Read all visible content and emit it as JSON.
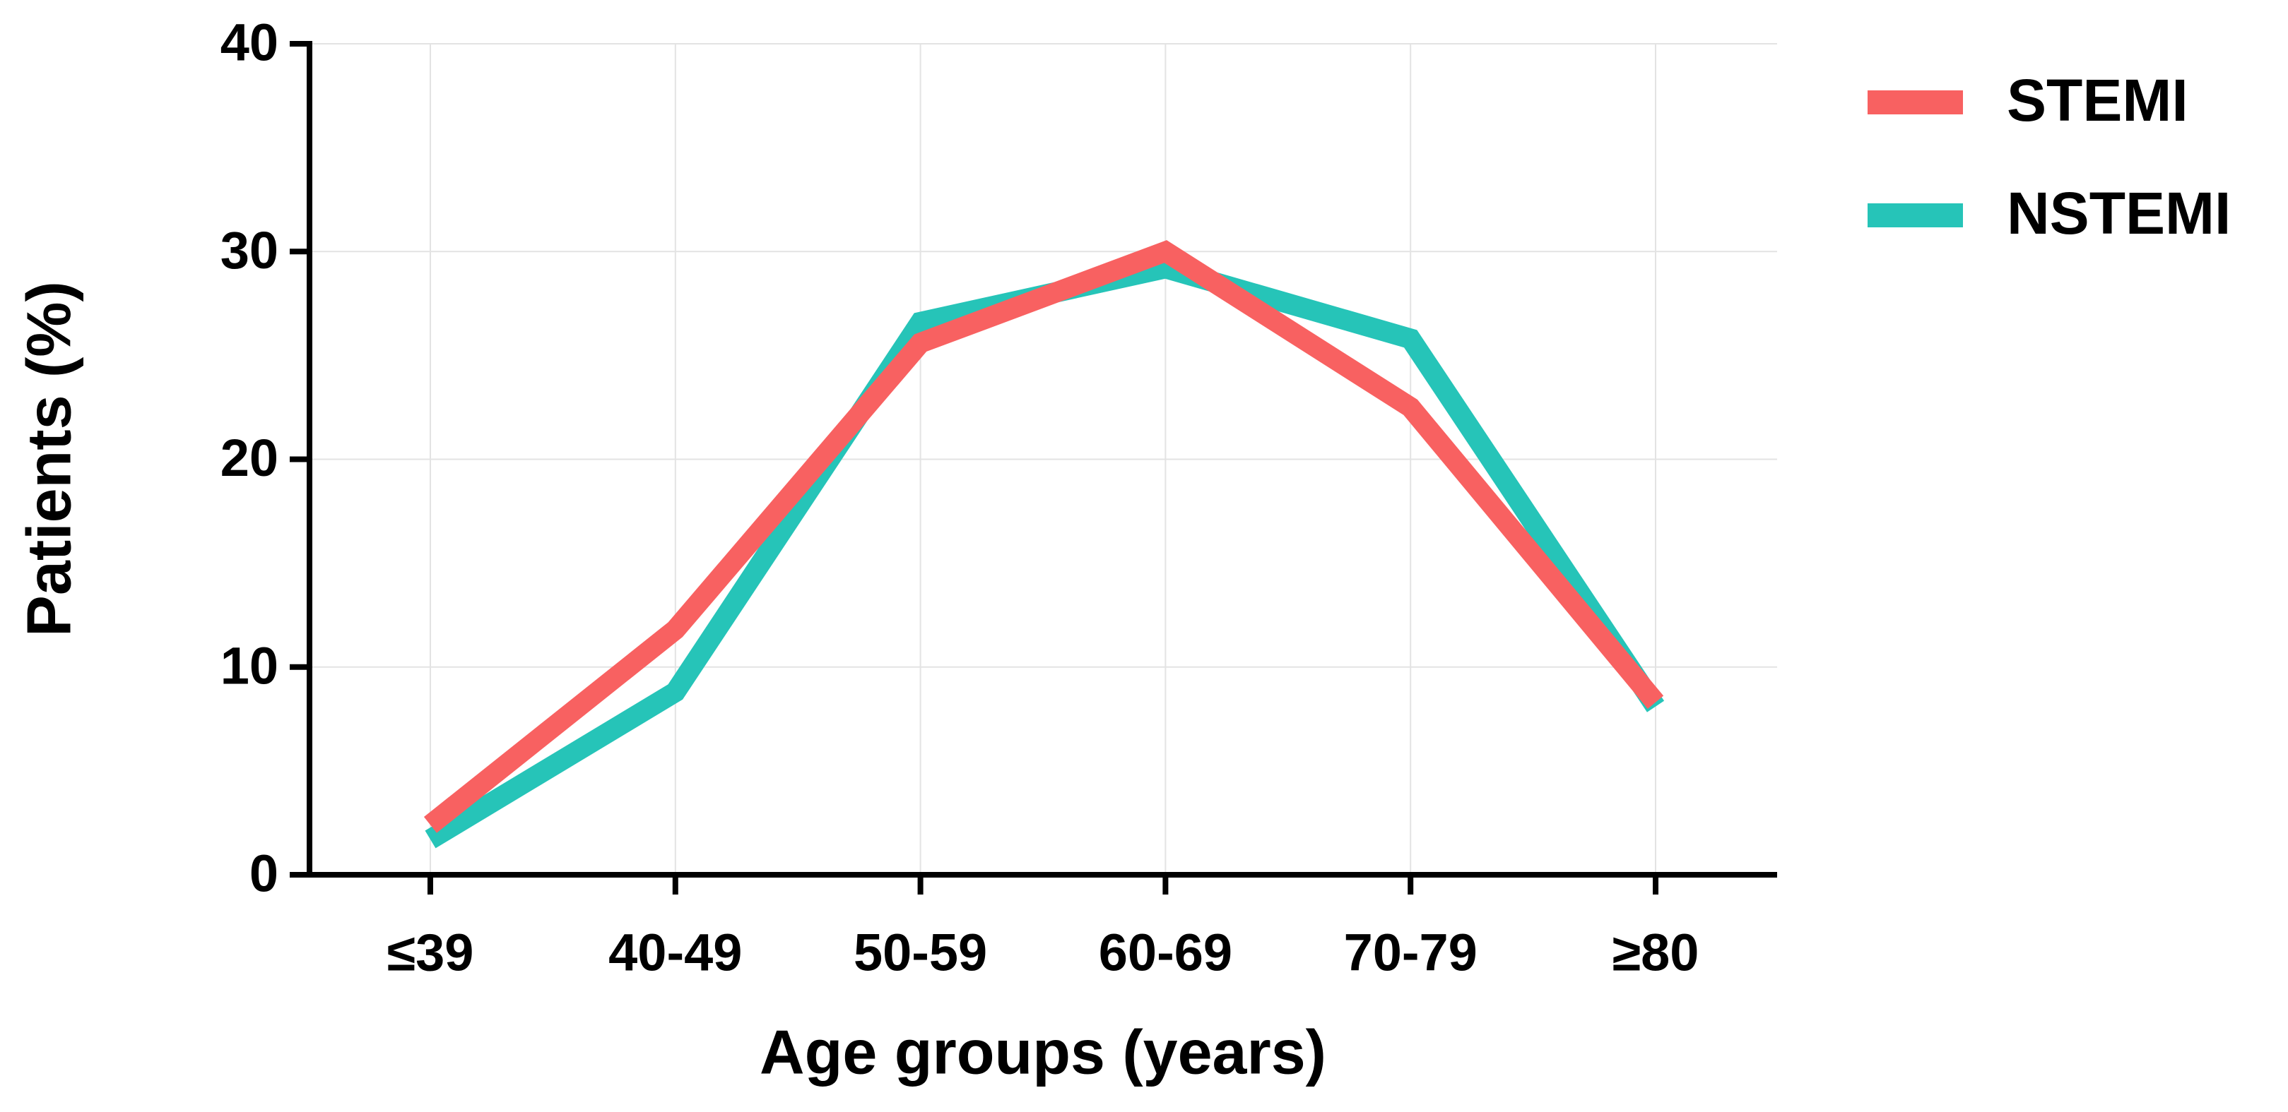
{
  "chart_data": {
    "type": "line",
    "x_label": "Age groups (years)",
    "y_label": "Patients (%)",
    "categories": [
      "≤39",
      "40-49",
      "50-59",
      "60-69",
      "70-79",
      "≥80"
    ],
    "series": [
      {
        "name": "STEMI",
        "color": "#f86161",
        "values": [
          2.4,
          11.8,
          25.6,
          30.0,
          22.5,
          8.3
        ]
      },
      {
        "name": "NSTEMI",
        "color": "#26c4b8",
        "values": [
          1.7,
          8.8,
          26.6,
          29.2,
          25.8,
          8.1
        ]
      }
    ],
    "ylim": [
      0,
      40
    ],
    "yticks": [
      0,
      10,
      20,
      30,
      40
    ],
    "grid": true,
    "legend": "right"
  }
}
